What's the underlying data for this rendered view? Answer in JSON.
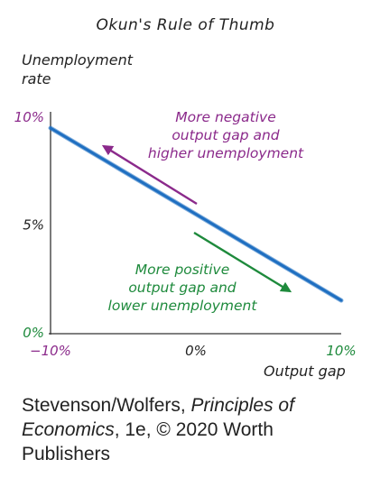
{
  "chart_data": {
    "type": "line",
    "title": "Okun's Rule of Thumb",
    "ylabel": "Unemployment\nrate",
    "xlabel": "Output gap",
    "x_ticks": [
      "−10%",
      "0%",
      "10%"
    ],
    "y_ticks": [
      "0%",
      "5%",
      "10%"
    ],
    "xlim": [
      -10,
      10
    ],
    "ylim": [
      0,
      10
    ],
    "series": [
      {
        "x": [
          -10,
          -5,
          0,
          5,
          10
        ],
        "y": [
          9.5,
          7.5,
          5.5,
          3.5,
          1.5
        ]
      }
    ],
    "annotations": [
      {
        "text": "More negative\noutput gap and\nhigher unemployment",
        "color": "#8b2a8b"
      },
      {
        "text": "More positive\noutput gap and\nlower unemployment",
        "color": "#1e8a3c"
      }
    ],
    "colors": {
      "line": "#1f6fc1",
      "negative": "#8b2a8b",
      "positive": "#1e8a3c",
      "axis_tick_purple": "#8b2a8b",
      "axis_tick_green": "#1e8a3c"
    }
  },
  "source": {
    "prefix": "Stevenson/Wolfers, ",
    "book": "Principles of Economics",
    "suffix": ", 1e, © 2020 Worth Publishers"
  }
}
